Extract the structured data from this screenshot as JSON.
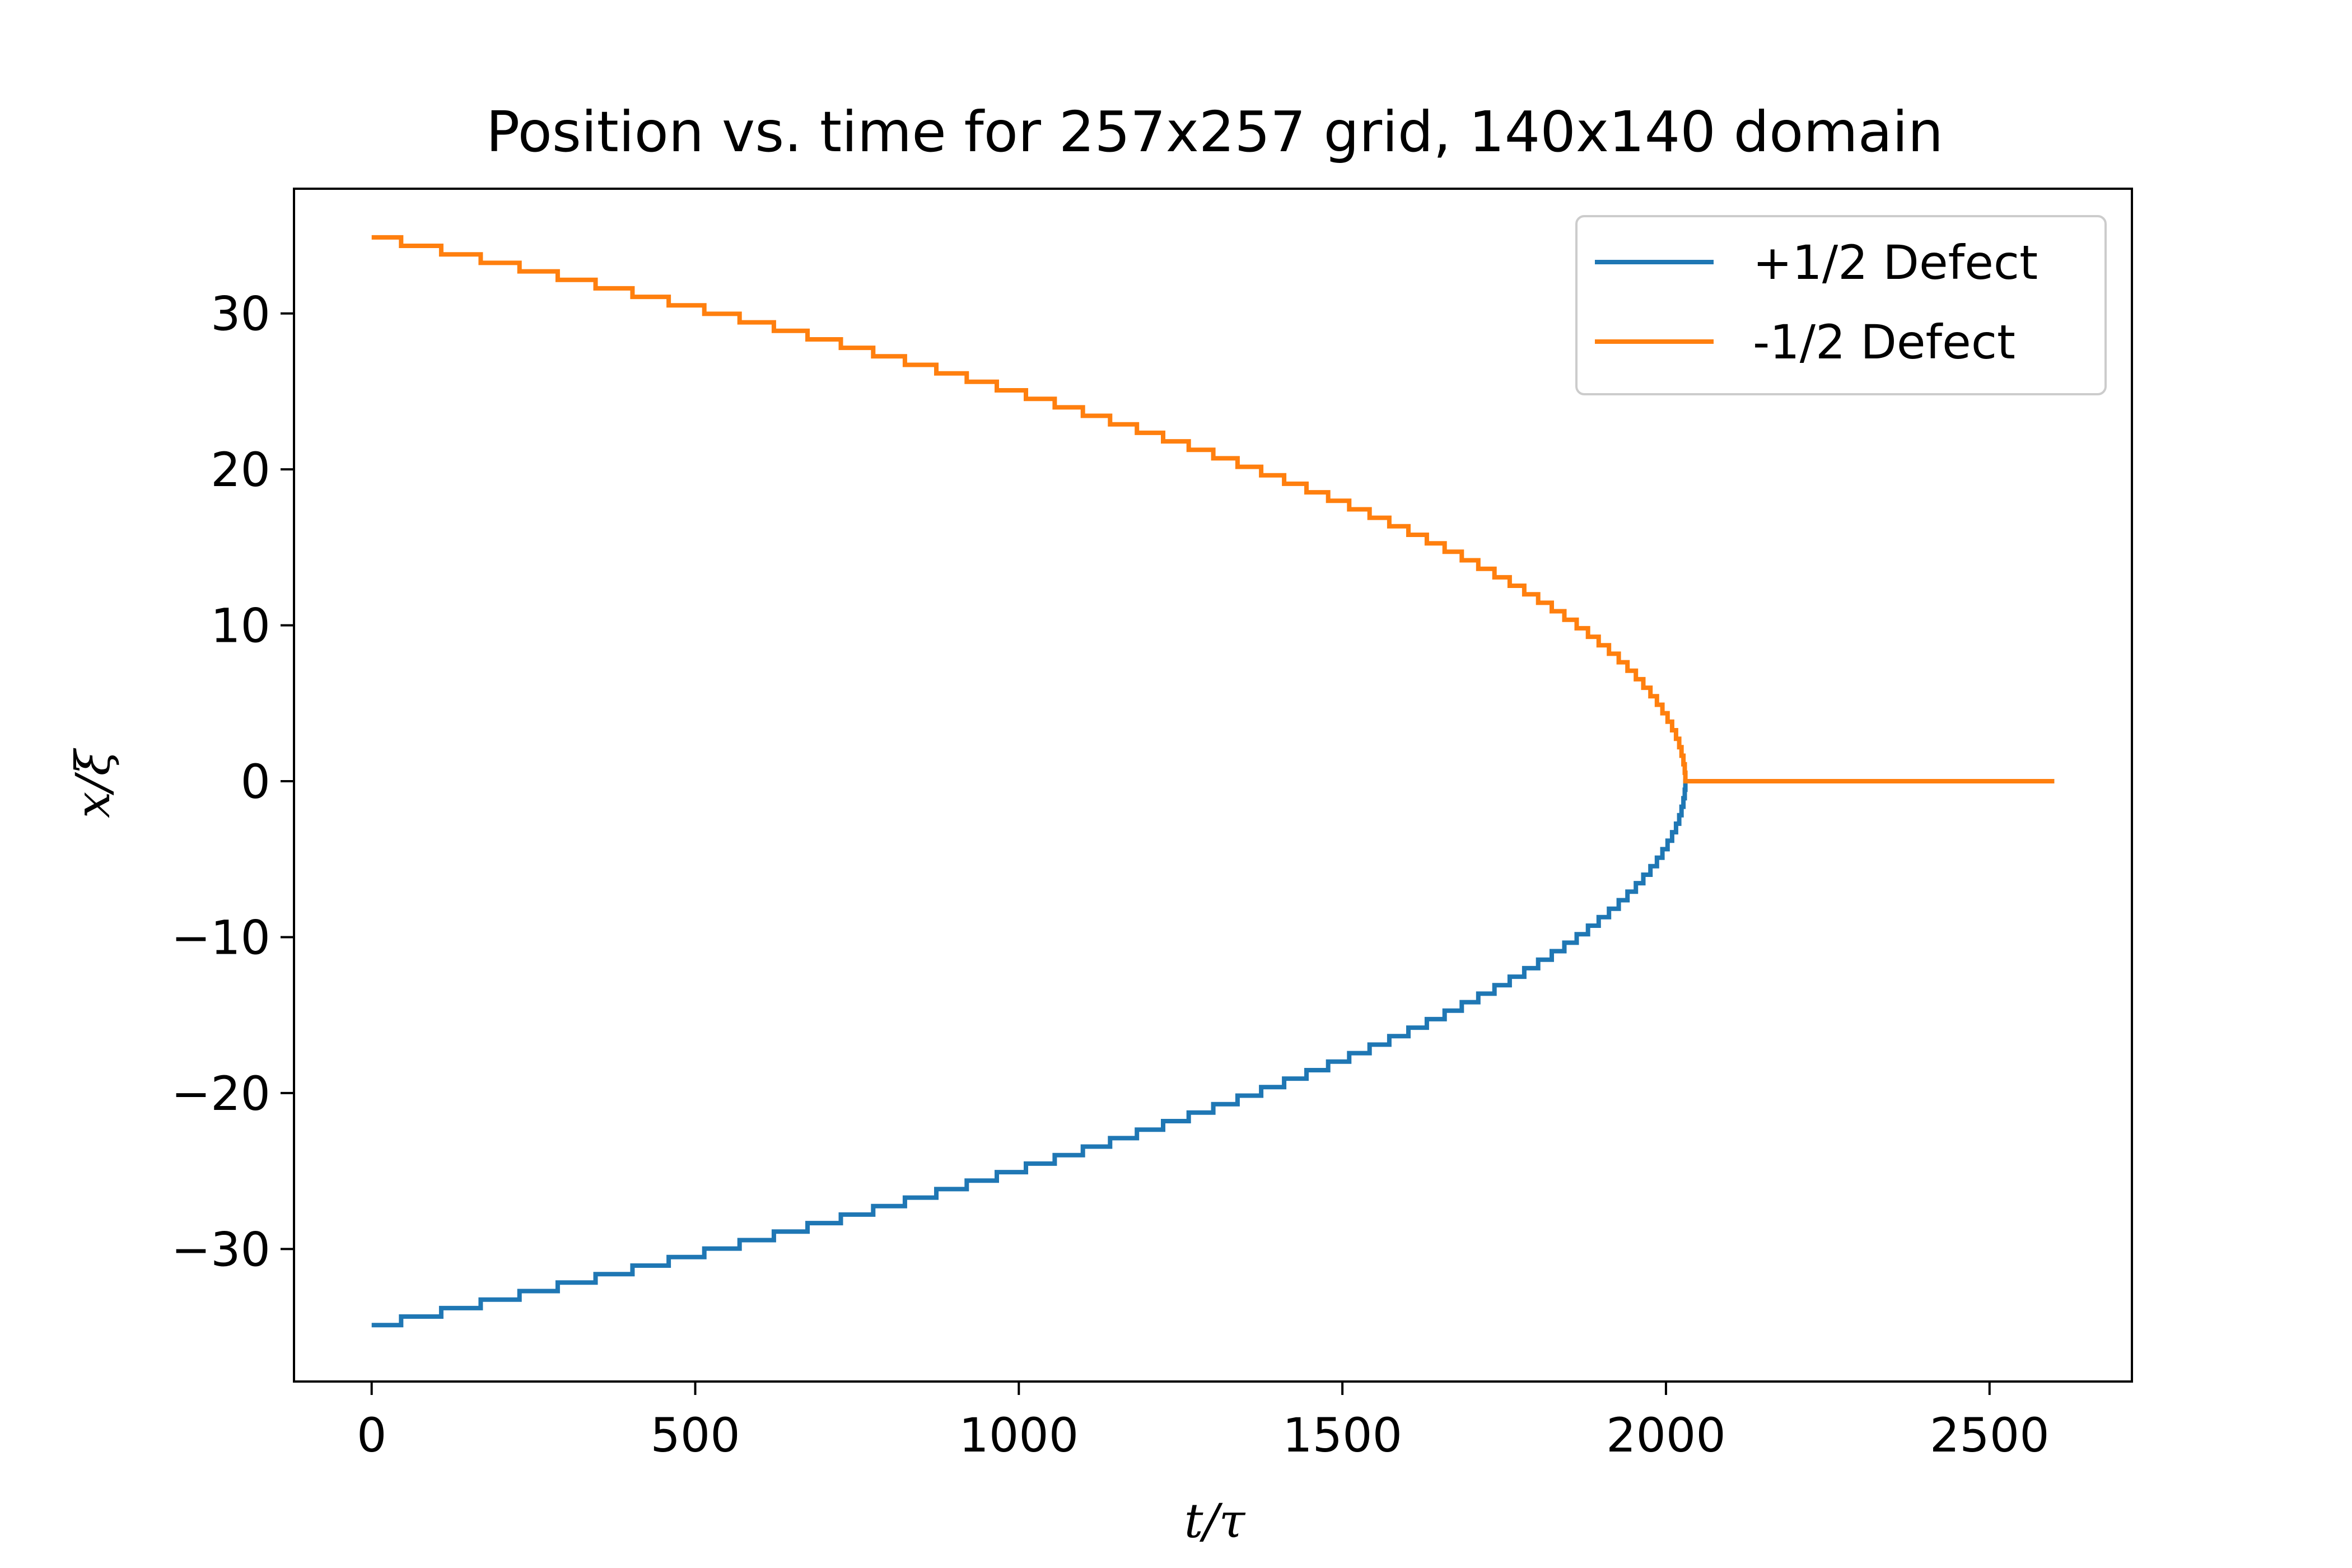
{
  "chart_data": {
    "type": "line",
    "title": "Position vs. time for 257x257 grid, 140x140 domain",
    "xlabel": "t/τ",
    "ylabel": "x/ξ",
    "xlim": [
      -120,
      2720
    ],
    "ylim": [
      -38.5,
      38.0
    ],
    "xticks": [
      0,
      500,
      1000,
      1500,
      2000,
      2500
    ],
    "xtick_labels": [
      "0",
      "500",
      "1000",
      "1500",
      "2000",
      "2500"
    ],
    "yticks": [
      -30,
      -20,
      -10,
      0,
      10,
      20,
      30
    ],
    "ytick_labels": [
      "−30",
      "−20",
      "−10",
      "0",
      "10",
      "20",
      "30"
    ],
    "grid": false,
    "legend_position": "top-right",
    "collision_time": 2030,
    "end_time": 2600,
    "initial_separation_half": 35,
    "step_size": 0.545,
    "series": [
      {
        "name": "+1/2 Defect",
        "color": "#1f77b4",
        "sign": -1
      },
      {
        "name": "-1/2 Defect",
        "color": "#ff7f0e",
        "sign": 1
      }
    ]
  }
}
